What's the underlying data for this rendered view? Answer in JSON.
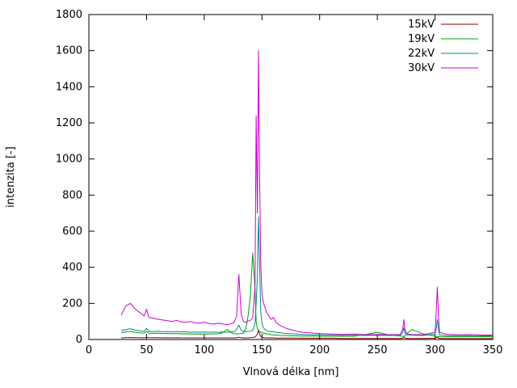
{
  "chart_data": {
    "type": "line",
    "title": "",
    "xlabel": "Vlnová délka [nm]",
    "ylabel": "intenzita [-]",
    "xlim": [
      0,
      350
    ],
    "ylim": [
      0,
      1800
    ],
    "xticks": [
      0,
      50,
      100,
      150,
      200,
      250,
      300,
      350
    ],
    "yticks": [
      0,
      200,
      400,
      600,
      800,
      1000,
      1200,
      1400,
      1600,
      1800
    ],
    "grid": false,
    "legend_position": "top-right",
    "axis_color": "#000000",
    "x": [
      28,
      32,
      36,
      40,
      44,
      48,
      50,
      52,
      56,
      60,
      64,
      68,
      72,
      76,
      80,
      84,
      88,
      92,
      96,
      100,
      104,
      108,
      112,
      116,
      120,
      124,
      126,
      128,
      130,
      132,
      134,
      136,
      138,
      140,
      142,
      144,
      145,
      146,
      147,
      148,
      149,
      150,
      151,
      152,
      153,
      154,
      155,
      156,
      158,
      160,
      162,
      165,
      170,
      175,
      180,
      185,
      190,
      195,
      200,
      210,
      220,
      230,
      240,
      250,
      260,
      270,
      272,
      273,
      274,
      276,
      280,
      290,
      300,
      301,
      302,
      303,
      304,
      310,
      320,
      330,
      340,
      350
    ],
    "series": [
      {
        "name": "15kV",
        "color": "#8b0000",
        "values": [
          9,
          10,
          11,
          10,
          10,
          9,
          12,
          10,
          10,
          10,
          9,
          10,
          9,
          10,
          9,
          9,
          9,
          9,
          9,
          9,
          9,
          9,
          9,
          9,
          9,
          9,
          9,
          10,
          13,
          10,
          9,
          9,
          9,
          10,
          11,
          14,
          20,
          30,
          52,
          28,
          16,
          12,
          11,
          10,
          10,
          9,
          9,
          9,
          9,
          9,
          8,
          8,
          8,
          8,
          8,
          7,
          7,
          7,
          7,
          7,
          6,
          6,
          6,
          6,
          6,
          6,
          8,
          11,
          8,
          6,
          6,
          6,
          7,
          9,
          13,
          8,
          6,
          6,
          5,
          5,
          5,
          5
        ]
      },
      {
        "name": "19kV",
        "color": "#00a000",
        "values": [
          38,
          42,
          45,
          40,
          37,
          35,
          45,
          35,
          34,
          35,
          33,
          34,
          32,
          33,
          31,
          32,
          30,
          31,
          30,
          31,
          30,
          31,
          32,
          38,
          55,
          36,
          32,
          31,
          32,
          33,
          36,
          60,
          130,
          250,
          480,
          280,
          100,
          60,
          50,
          44,
          40,
          38,
          36,
          34,
          32,
          33,
          30,
          29,
          27,
          25,
          24,
          23,
          22,
          21,
          20,
          19,
          19,
          19,
          18,
          18,
          18,
          18,
          28,
          40,
          25,
          19,
          18,
          17,
          22,
          35,
          55,
          30,
          19,
          17,
          16,
          16,
          15,
          15,
          15,
          15,
          15,
          15
        ]
      },
      {
        "name": "22kV",
        "color": "#008b8b",
        "values": [
          50,
          55,
          60,
          52,
          48,
          45,
          62,
          46,
          44,
          46,
          43,
          45,
          42,
          44,
          41,
          43,
          40,
          42,
          40,
          42,
          40,
          41,
          40,
          42,
          40,
          42,
          44,
          55,
          80,
          50,
          44,
          43,
          45,
          46,
          50,
          90,
          200,
          350,
          680,
          400,
          150,
          90,
          70,
          60,
          55,
          50,
          48,
          46,
          42,
          44,
          40,
          38,
          34,
          32,
          30,
          28,
          27,
          26,
          25,
          24,
          23,
          24,
          22,
          23,
          22,
          23,
          40,
          65,
          35,
          24,
          23,
          22,
          30,
          60,
          110,
          50,
          25,
          22,
          21,
          22,
          20,
          20
        ]
      },
      {
        "name": "30kV",
        "color": "#cc00cc",
        "values": [
          135,
          185,
          200,
          170,
          150,
          130,
          168,
          122,
          118,
          112,
          108,
          104,
          100,
          106,
          98,
          95,
          100,
          92,
          90,
          96,
          88,
          85,
          91,
          86,
          82,
          88,
          96,
          130,
          360,
          140,
          100,
          95,
          102,
          106,
          120,
          300,
          1240,
          700,
          1600,
          900,
          400,
          260,
          210,
          190,
          170,
          150,
          140,
          130,
          112,
          122,
          96,
          80,
          64,
          54,
          46,
          40,
          38,
          35,
          33,
          30,
          28,
          30,
          27,
          28,
          27,
          28,
          60,
          110,
          50,
          30,
          28,
          27,
          40,
          150,
          290,
          120,
          40,
          28,
          26,
          27,
          25,
          24
        ]
      }
    ]
  }
}
